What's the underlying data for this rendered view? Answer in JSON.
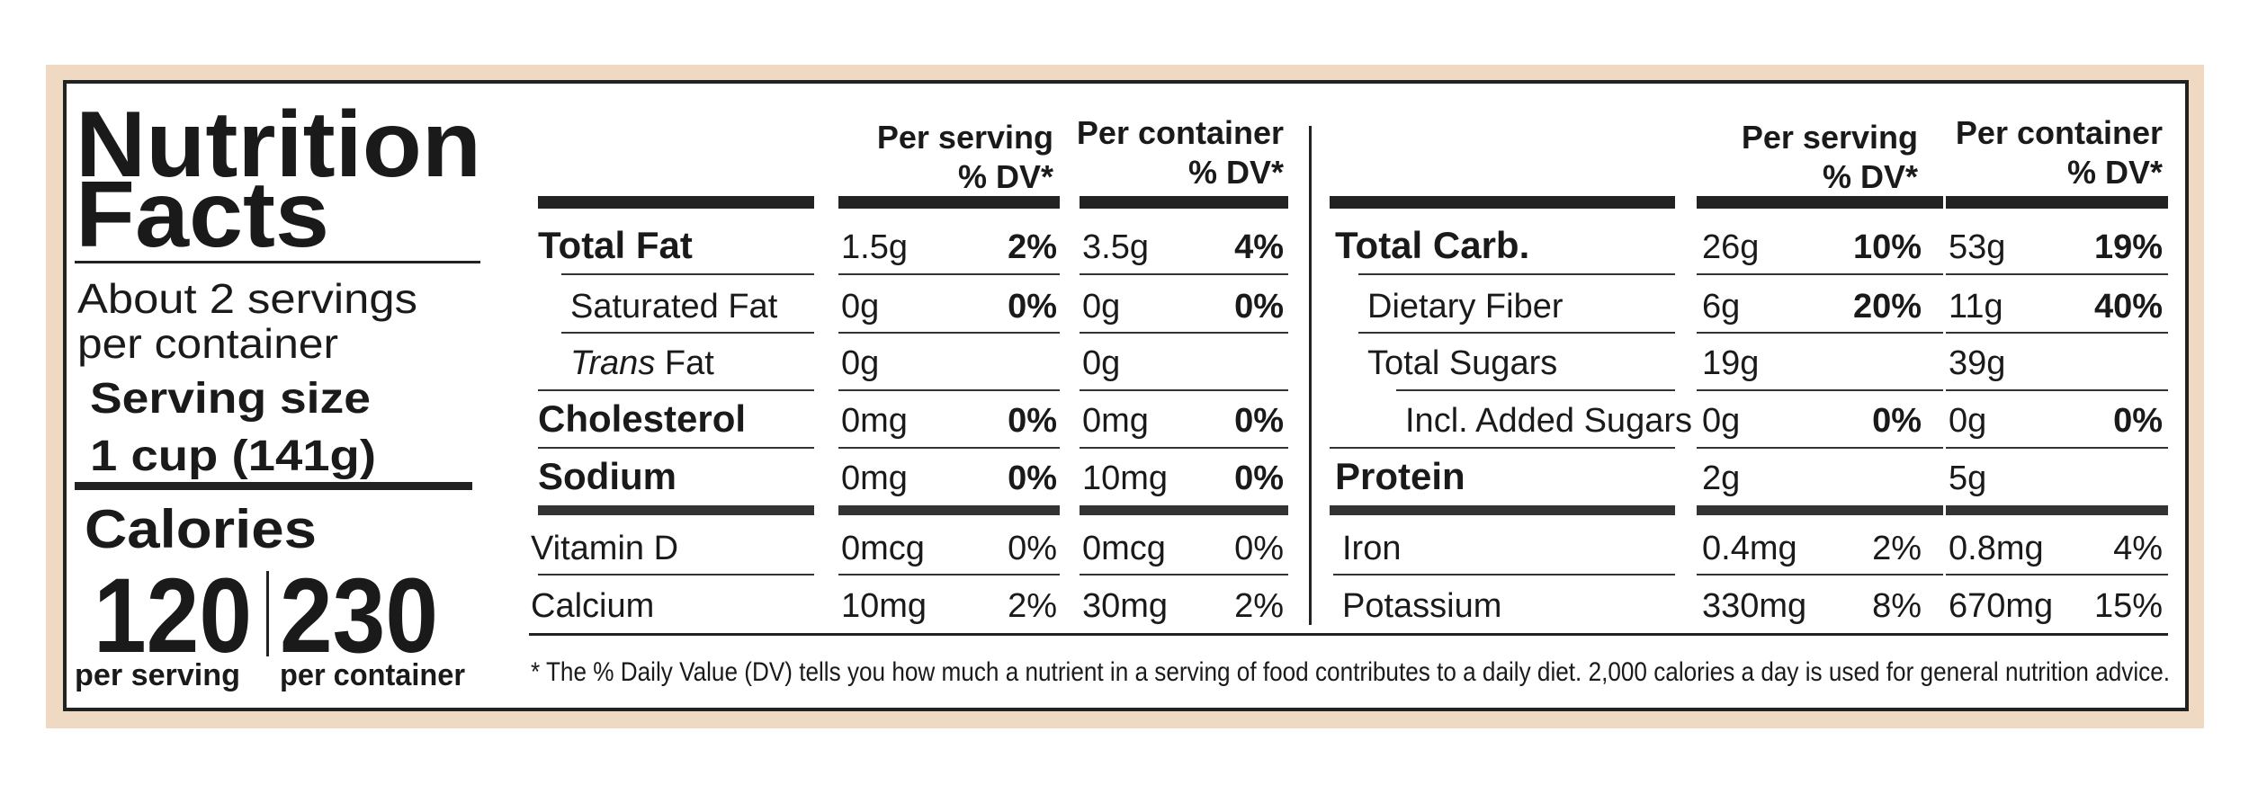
{
  "title": {
    "line1": "Nutrition",
    "line2": "Facts"
  },
  "servings": {
    "line1": "About 2 servings",
    "line2": "per container",
    "size_label": "Serving size",
    "size": "1 cup (141g)"
  },
  "calories": {
    "label": "Calories",
    "per_serving": 120,
    "per_serving_label": "per serving",
    "per_container": 230,
    "per_container_label": "per container"
  },
  "tables": [
    {
      "headers": {
        "serving": "Per serving",
        "serving_dv": "% DV*",
        "container": "Per container",
        "container_dv": "% DV*"
      },
      "rows": [
        {
          "name": "Total Fat",
          "style": "bold",
          "serving": "1.5g",
          "serving_dv": "2%",
          "container": "3.5g",
          "container_dv": "4%"
        },
        {
          "name": "Saturated Fat",
          "style": "sub",
          "serving": "0g",
          "serving_dv": "0%",
          "container": "0g",
          "container_dv": "0%"
        },
        {
          "italic": "Trans",
          "name": "Fat",
          "style": "sub",
          "serving": "0g",
          "container": "0g"
        },
        {
          "name": "Cholesterol",
          "style": "bold",
          "serving": "0mg",
          "serving_dv": "0%",
          "container": "0mg",
          "container_dv": "0%"
        },
        {
          "name": "Sodium",
          "style": "bold",
          "serving": "0mg",
          "serving_dv": "0%",
          "container": "10mg",
          "container_dv": "0%"
        },
        {
          "name": "Vitamin D",
          "style": "plain",
          "serving": "0mcg",
          "serving_dv": "0%",
          "container": "0mcg",
          "container_dv": "0%"
        },
        {
          "name": "Calcium",
          "style": "plain",
          "serving": "10mg",
          "serving_dv": "2%",
          "container": "30mg",
          "container_dv": "2%"
        }
      ]
    },
    {
      "headers": {
        "serving": "Per serving",
        "serving_dv": "% DV*",
        "container": "Per container",
        "container_dv": "% DV*"
      },
      "rows": [
        {
          "name": "Total Carb.",
          "style": "bold",
          "serving": "26g",
          "serving_dv": "10%",
          "container": "53g",
          "container_dv": "19%"
        },
        {
          "name": "Dietary Fiber",
          "style": "sub",
          "serving": "6g",
          "serving_dv": "20%",
          "container": "11g",
          "container_dv": "40%"
        },
        {
          "name": "Total Sugars",
          "style": "sub",
          "serving": "19g",
          "container": "39g"
        },
        {
          "name": "Incl. Added Sugars",
          "style": "sub2",
          "serving": "0g",
          "serving_dv": "0%",
          "container": "0g",
          "container_dv": "0%"
        },
        {
          "name": "Protein",
          "style": "bold",
          "serving": "2g",
          "container": "5g"
        },
        {
          "name": "Iron",
          "style": "plain",
          "serving": "0.4mg",
          "serving_dv": "2%",
          "container": "0.8mg",
          "container_dv": "4%"
        },
        {
          "name": "Potassium",
          "style": "plain",
          "serving": "330mg",
          "serving_dv": "8%",
          "container": "670mg",
          "container_dv": "15%"
        }
      ]
    }
  ],
  "footnote": "* The % Daily Value (DV) tells you how much a nutrient in a serving of food contributes to a daily diet. 2,000 calories a day is used for general nutrition advice."
}
